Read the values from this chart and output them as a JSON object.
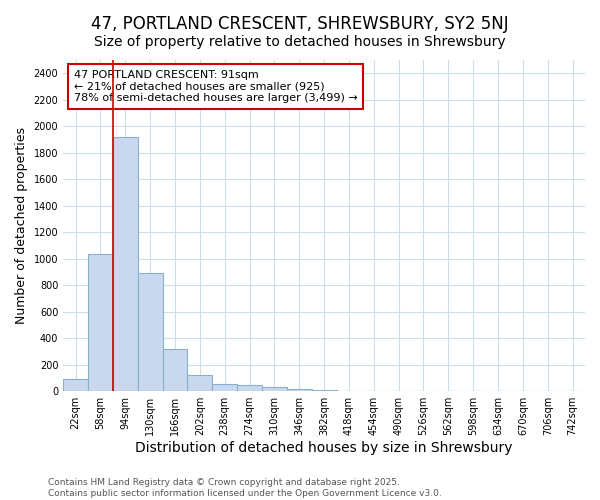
{
  "title": "47, PORTLAND CRESCENT, SHREWSBURY, SY2 5NJ",
  "subtitle": "Size of property relative to detached houses in Shrewsbury",
  "xlabel": "Distribution of detached houses by size in Shrewsbury",
  "ylabel": "Number of detached properties",
  "categories": [
    "22sqm",
    "58sqm",
    "94sqm",
    "130sqm",
    "166sqm",
    "202sqm",
    "238sqm",
    "274sqm",
    "310sqm",
    "346sqm",
    "382sqm",
    "418sqm",
    "454sqm",
    "490sqm",
    "526sqm",
    "562sqm",
    "598sqm",
    "634sqm",
    "670sqm",
    "706sqm",
    "742sqm"
  ],
  "values": [
    90,
    1035,
    1920,
    890,
    320,
    120,
    55,
    45,
    30,
    15,
    10,
    0,
    0,
    0,
    0,
    0,
    0,
    0,
    0,
    0,
    0
  ],
  "bar_color": "#c8d8ee",
  "bar_edge_color": "#8ab0cc",
  "annotation_text": "47 PORTLAND CRESCENT: 91sqm\n← 21% of detached houses are smaller (925)\n78% of semi-detached houses are larger (3,499) →",
  "annotation_box_facecolor": "#ffffff",
  "annotation_box_edgecolor": "#cc0000",
  "red_line_color": "#cc0000",
  "red_line_x": 2.0,
  "ylim": [
    0,
    2500
  ],
  "yticks": [
    0,
    200,
    400,
    600,
    800,
    1000,
    1200,
    1400,
    1600,
    1800,
    2000,
    2200,
    2400
  ],
  "fig_bg_color": "#ffffff",
  "plot_bg_color": "#ffffff",
  "grid_color": "#d0dde8",
  "title_fontsize": 12,
  "subtitle_fontsize": 10,
  "xlabel_fontsize": 10,
  "ylabel_fontsize": 9,
  "tick_fontsize": 7,
  "annot_fontsize": 8,
  "footnote_fontsize": 6.5,
  "footnote": "Contains HM Land Registry data © Crown copyright and database right 2025.\nContains public sector information licensed under the Open Government Licence v3.0."
}
